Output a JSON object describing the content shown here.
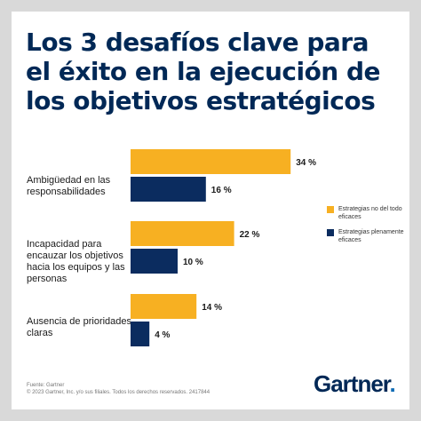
{
  "title": "Los 3 desafíos clave para el éxito en la ejecución de los objetivos estratégicos",
  "colors": {
    "series1": "#f7b022",
    "series2": "#0b2c5f",
    "brand": "#002856",
    "brand_dot": "#0f6bb5"
  },
  "chart_data": {
    "type": "bar",
    "orientation": "horizontal",
    "categories": [
      "Ambigüedad en las responsabilidades",
      "Incapacidad para encauzar los objetivos hacia los equipos y las personas",
      "Ausencia de prioridades claras"
    ],
    "series": [
      {
        "name": "Estrategias no del todo eficaces",
        "color": "#f7b022",
        "values": [
          34,
          22,
          14
        ],
        "labels": [
          "34 %",
          "22 %",
          "14 %"
        ]
      },
      {
        "name": "Estrategias plenamente eficaces",
        "color": "#0b2c5f",
        "values": [
          16,
          10,
          4
        ],
        "labels": [
          "16 %",
          "10 %",
          "4 %"
        ]
      }
    ],
    "legend": "right",
    "grid": false,
    "xlabel": "",
    "ylabel": ""
  },
  "footer": {
    "source": "Fuente: Gartner",
    "copyright": "© 2023 Gartner, Inc. y/o sus filiales. Todos los derechos reservados. 2417844"
  },
  "logo": {
    "text": "Gartner",
    "dot": "."
  }
}
